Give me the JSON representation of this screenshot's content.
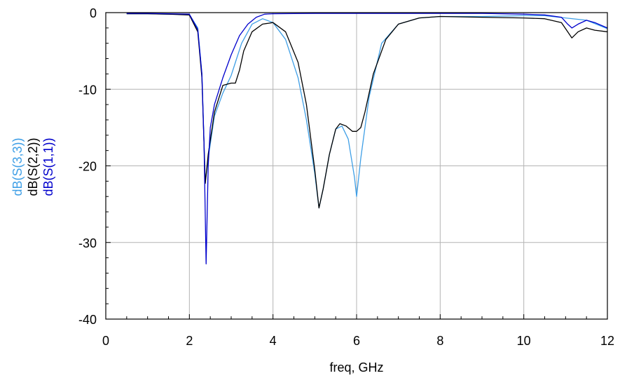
{
  "chart_data": {
    "type": "line",
    "title": "",
    "xlabel": "freq, GHz",
    "ylabel": "",
    "xlim": [
      0,
      12
    ],
    "ylim": [
      -40,
      0
    ],
    "xticks": [
      0,
      2,
      4,
      6,
      8,
      10,
      12
    ],
    "yticks": [
      0,
      -10,
      -20,
      -30,
      -40
    ],
    "xtick_labels": [
      "0",
      "2",
      "4",
      "6",
      "8",
      "10",
      "12"
    ],
    "ytick_labels": [
      "0",
      "-10",
      "-20",
      "-30",
      "-40"
    ],
    "grid": true,
    "legend_placement": "left, rotated vertical",
    "series": [
      {
        "name": "dB(S(3,3))",
        "color": "#3f9fe6",
        "x": [
          0.5,
          1.0,
          1.5,
          2.0,
          2.2,
          2.3,
          2.38,
          2.45,
          2.6,
          2.8,
          3.0,
          3.1,
          3.25,
          3.5,
          3.75,
          4.0,
          4.3,
          4.6,
          4.8,
          5.0,
          5.1,
          5.2,
          5.35,
          5.5,
          5.65,
          5.8,
          5.95,
          6.0,
          6.1,
          6.3,
          6.6,
          7.0,
          7.5,
          8.0,
          9.0,
          10.0,
          10.5,
          11.0,
          11.5,
          12.0
        ],
        "values": [
          -0.15,
          -0.15,
          -0.2,
          -0.25,
          -2.0,
          -8.0,
          -22.2,
          -19.0,
          -13.5,
          -10.5,
          -8.2,
          -6.5,
          -4.0,
          -1.5,
          -0.8,
          -1.3,
          -3.5,
          -8.5,
          -14.0,
          -21.0,
          -25.5,
          -23.0,
          -18.5,
          -15.2,
          -14.8,
          -16.5,
          -21.5,
          -24.0,
          -19.0,
          -11.0,
          -4.0,
          -1.5,
          -0.7,
          -0.5,
          -0.5,
          -0.4,
          -0.4,
          -0.7,
          -1.0,
          -2.1
        ]
      },
      {
        "name": "dB(S(2,2))",
        "color": "#000000",
        "x": [
          0.5,
          1.0,
          1.5,
          2.0,
          2.2,
          2.3,
          2.38,
          2.45,
          2.6,
          2.8,
          3.0,
          3.1,
          3.2,
          3.3,
          3.5,
          3.75,
          4.0,
          4.3,
          4.6,
          4.8,
          5.0,
          5.1,
          5.2,
          5.35,
          5.5,
          5.6,
          5.75,
          5.9,
          6.0,
          6.1,
          6.2,
          6.4,
          6.7,
          7.0,
          7.5,
          8.0,
          9.0,
          10.0,
          10.5,
          10.9,
          11.05,
          11.15,
          11.3,
          11.5,
          11.7,
          12.0
        ],
        "values": [
          -0.15,
          -0.15,
          -0.2,
          -0.3,
          -2.5,
          -8.5,
          -22.3,
          -18.5,
          -13.0,
          -9.5,
          -9.2,
          -9.2,
          -7.5,
          -5.0,
          -2.5,
          -1.5,
          -1.3,
          -2.5,
          -6.5,
          -12.0,
          -20.5,
          -25.5,
          -23.0,
          -18.5,
          -15.2,
          -14.5,
          -14.8,
          -15.5,
          -15.5,
          -15.0,
          -13.0,
          -8.0,
          -3.5,
          -1.5,
          -0.7,
          -0.5,
          -0.6,
          -0.7,
          -0.8,
          -1.3,
          -2.5,
          -3.3,
          -2.5,
          -2.0,
          -2.3,
          -2.5
        ]
      },
      {
        "name": "dB(S(1,1))",
        "color": "#0000cc",
        "x": [
          0.5,
          1.0,
          1.5,
          2.0,
          2.2,
          2.3,
          2.35,
          2.4,
          2.45,
          2.5,
          2.6,
          2.8,
          3.0,
          3.2,
          3.4,
          3.6,
          3.8,
          4.0,
          5.0,
          6.0,
          7.0,
          8.0,
          9.0,
          10.0,
          10.5,
          10.9,
          11.05,
          11.15,
          11.3,
          11.5,
          11.7,
          12.0
        ],
        "values": [
          -0.1,
          -0.1,
          -0.15,
          -0.2,
          -2.2,
          -8.0,
          -17.0,
          -32.8,
          -20.0,
          -15.0,
          -12.0,
          -8.5,
          -5.5,
          -3.0,
          -1.5,
          -0.6,
          -0.2,
          -0.15,
          -0.1,
          -0.1,
          -0.1,
          -0.1,
          -0.1,
          -0.2,
          -0.3,
          -0.6,
          -1.5,
          -2.0,
          -1.5,
          -1.0,
          -1.3,
          -2.0
        ]
      }
    ]
  }
}
